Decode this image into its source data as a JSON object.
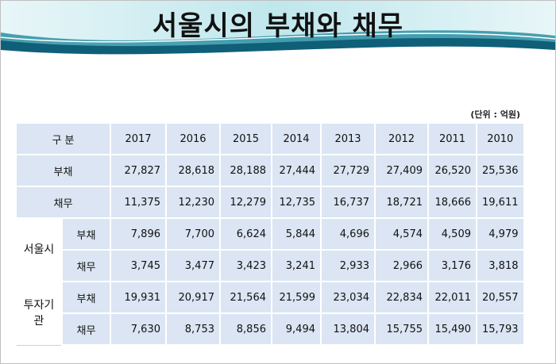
{
  "header": {
    "title": "서울시의 부채와 채무",
    "unit": "(단위 : 억원)"
  },
  "table": {
    "corner": "구 분",
    "years": [
      "2017",
      "2016",
      "2015",
      "2014",
      "2013",
      "2012",
      "2011",
      "2010"
    ],
    "rows": [
      {
        "label": "부채",
        "values": [
          "27,827",
          "28,618",
          "28,188",
          "27,444",
          "27,729",
          "27,409",
          "26,520",
          "25,536"
        ]
      },
      {
        "label": "채무",
        "values": [
          "11,375",
          "12,230",
          "12,279",
          "12,735",
          "16,737",
          "18,721",
          "18,666",
          "19,611"
        ]
      }
    ],
    "groups": [
      {
        "label": "서울시",
        "rows": [
          {
            "label": "부채",
            "values": [
              "7,896",
              "7,700",
              "6,624",
              "5,844",
              "4,696",
              "4,574",
              "4,509",
              "4,979"
            ]
          },
          {
            "label": "채무",
            "values": [
              "3,745",
              "3,477",
              "3,423",
              "3,241",
              "2,933",
              "2,966",
              "3,176",
              "3,818"
            ]
          }
        ]
      },
      {
        "label": "투자기관",
        "rows": [
          {
            "label": "부채",
            "values": [
              "19,931",
              "20,917",
              "21,564",
              "21,599",
              "23,034",
              "22,834",
              "22,011",
              "20,557"
            ]
          },
          {
            "label": "채무",
            "values": [
              "7,630",
              "8,753",
              "8,856",
              "9,494",
              "13,804",
              "15,755",
              "15,490",
              "15,793"
            ]
          }
        ]
      }
    ]
  }
}
